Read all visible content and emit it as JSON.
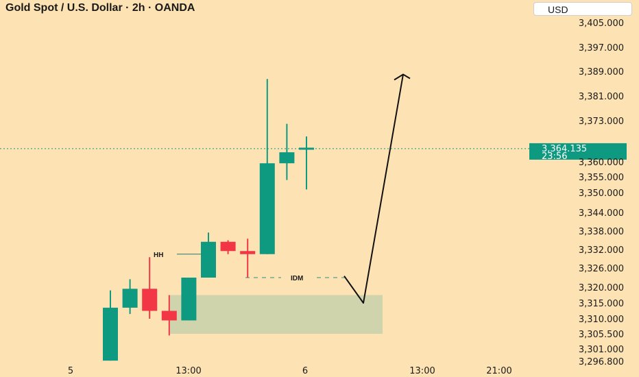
{
  "header": {
    "title": "Gold Spot / U.S. Dollar · 2h · OANDA",
    "currency": "USD"
  },
  "colors": {
    "up": "#0e9981",
    "down": "#f23645",
    "background": "#fde2b4",
    "zone": "#cdd3ac",
    "price_label": "#0e9981"
  },
  "chart_data": {
    "type": "candlestick",
    "y_ticks": [
      "3,405.000",
      "3,397.000",
      "3,389.000",
      "3,381.000",
      "3,373.000",
      "3,360.000",
      "3,355.000",
      "3,350.000",
      "3,344.000",
      "3,338.000",
      "3,332.000",
      "3,326.000",
      "3,320.000",
      "3,315.000",
      "3,310.000",
      "3,305.500",
      "3,301.000",
      "3,296.800"
    ],
    "x_ticks": [
      "5",
      "13:00",
      "6",
      "13:00",
      "21:00"
    ],
    "candles": [
      {
        "o": 3297.0,
        "h": 3319.0,
        "l": 3297.0,
        "c": 3313.5
      },
      {
        "o": 3313.5,
        "h": 3322.5,
        "l": 3311.5,
        "c": 3319.5
      },
      {
        "o": 3319.5,
        "h": 3329.5,
        "l": 3310.0,
        "c": 3312.5
      },
      {
        "o": 3312.5,
        "h": 3317.5,
        "l": 3305.0,
        "c": 3309.5
      },
      {
        "o": 3309.5,
        "h": 3323.0,
        "l": 3309.5,
        "c": 3323.0
      },
      {
        "o": 3323.0,
        "h": 3337.5,
        "l": 3323.0,
        "c": 3334.5
      },
      {
        "o": 3334.5,
        "h": 3335.0,
        "l": 3330.5,
        "c": 3331.5
      },
      {
        "o": 3331.5,
        "h": 3335.5,
        "l": 3323.0,
        "c": 3330.5
      },
      {
        "o": 3330.5,
        "h": 3386.5,
        "l": 3330.5,
        "c": 3359.5
      },
      {
        "o": 3359.5,
        "h": 3372.0,
        "l": 3354.0,
        "c": 3363.0
      },
      {
        "o": 3364.135,
        "h": 3368.0,
        "l": 3351.0,
        "c": 3364.135
      }
    ],
    "current_price": {
      "value": "3,364.135",
      "countdown": "23:56"
    },
    "annotations": [
      {
        "label": "HH",
        "price": 3330.5
      },
      {
        "label": "IDM",
        "price": 3323.0
      }
    ],
    "zone": {
      "from_price": 3305.5,
      "to_price": 3317.5
    },
    "projection": [
      3323.5,
      3315.0,
      3388.0
    ]
  }
}
